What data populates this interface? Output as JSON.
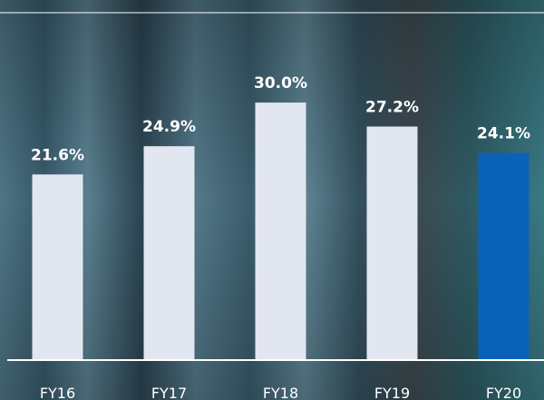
{
  "chart_data": {
    "type": "bar",
    "categories": [
      "FY16",
      "FY17",
      "FY18",
      "FY19",
      "FY20"
    ],
    "values": [
      21.6,
      24.9,
      30.0,
      27.2,
      24.1
    ],
    "value_labels": [
      "21.6%",
      "24.9%",
      "30.0%",
      "27.2%",
      "24.1%"
    ],
    "colors": [
      "#e2e6f0",
      "#e2e6f0",
      "#e2e6f0",
      "#e2e6f0",
      "#0a62b8"
    ]
  }
}
